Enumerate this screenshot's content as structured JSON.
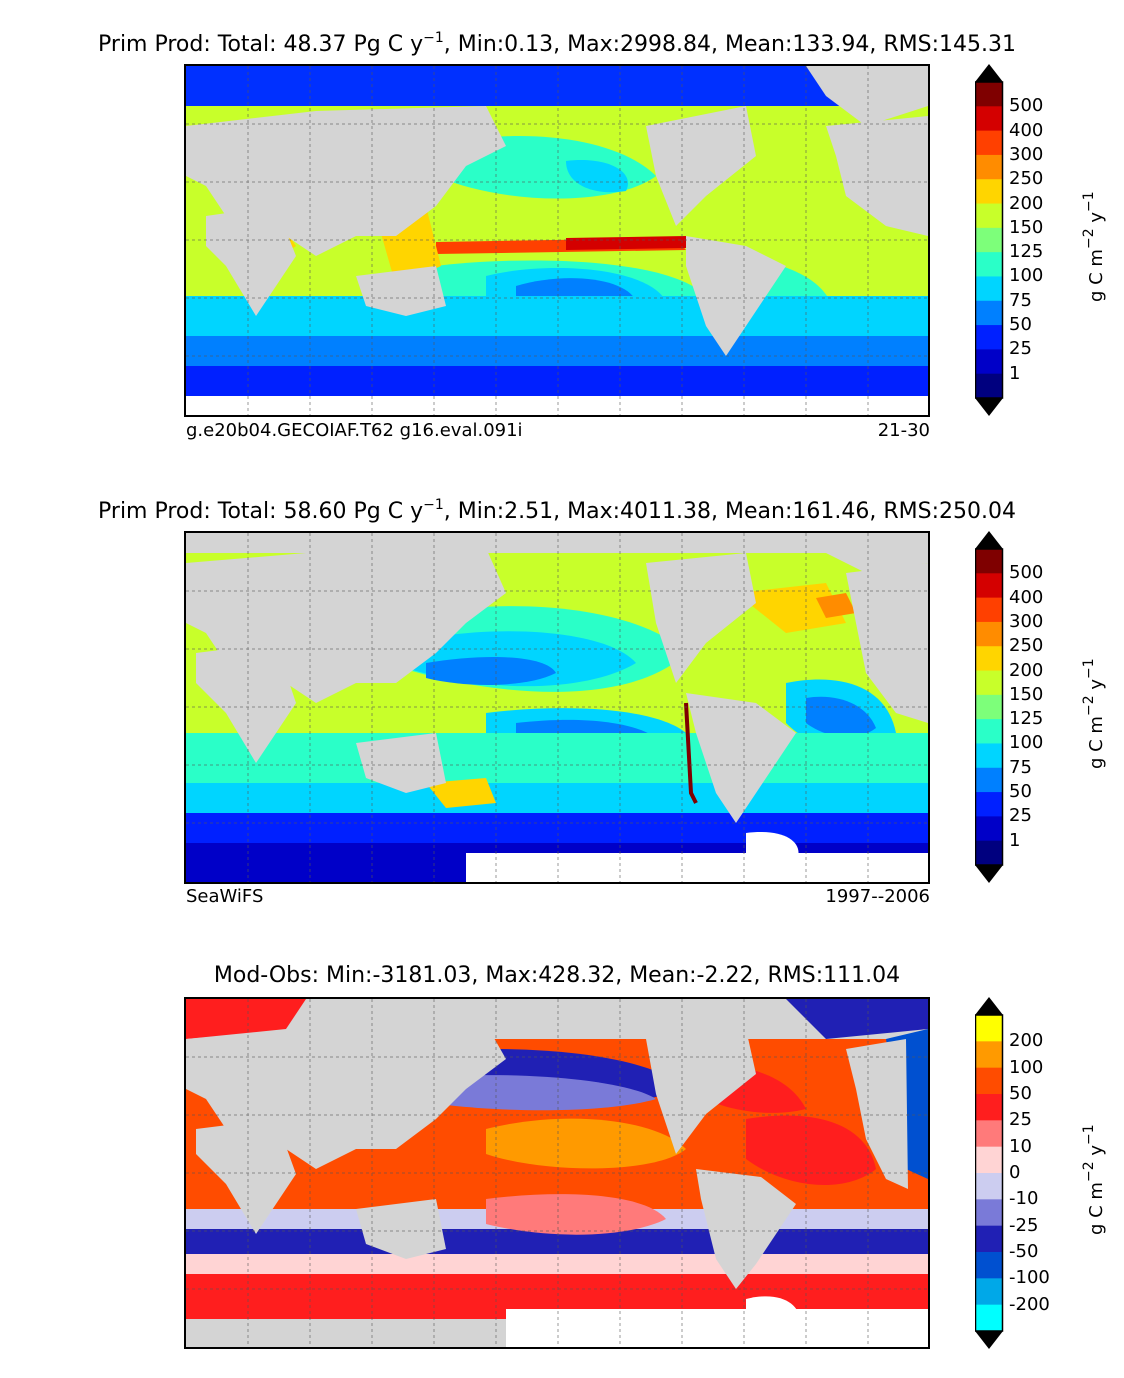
{
  "chart_data": [
    {
      "type": "heatmap",
      "title_prefix": "Prim Prod: Total: 48.37 Pg C y",
      "title_sup": "−1",
      "title_suffix": ", Min:0.13, Max:2998.84, Mean:133.94, RMS:145.31",
      "left_label": "g.e20b04.GECOIAF.T62 g16.eval.091i",
      "right_label": "21-30",
      "colorbar": {
        "ticks": [
          "500",
          "400",
          "300",
          "250",
          "200",
          "150",
          "125",
          "100",
          "75",
          "50",
          "25",
          "1"
        ],
        "unit": "g C m−2 y−1",
        "colors": [
          "#7f0000",
          "#d40000",
          "#ff4000",
          "#ff8c00",
          "#ffd500",
          "#c8ff2a",
          "#7dff7a",
          "#2affc8",
          "#00d5ff",
          "#0080ff",
          "#0020ff",
          "#0000c8",
          "#00007f"
        ]
      }
    },
    {
      "type": "heatmap",
      "title_prefix": "Prim Prod: Total: 58.60 Pg C y",
      "title_sup": "−1",
      "title_suffix": ", Min:2.51, Max:4011.38, Mean:161.46, RMS:250.04",
      "left_label": "SeaWiFS",
      "right_label": "1997--2006",
      "colorbar": {
        "ticks": [
          "500",
          "400",
          "300",
          "250",
          "200",
          "150",
          "125",
          "100",
          "75",
          "50",
          "25",
          "1"
        ],
        "unit": "g C m−2 y−1",
        "colors": [
          "#7f0000",
          "#d40000",
          "#ff4000",
          "#ff8c00",
          "#ffd500",
          "#c8ff2a",
          "#7dff7a",
          "#2affc8",
          "#00d5ff",
          "#0080ff",
          "#0020ff",
          "#0000c8",
          "#00007f"
        ]
      }
    },
    {
      "type": "heatmap",
      "title_prefix": "Mod-Obs: Min:-3181.03, Max:428.32, Mean:-2.22, RMS:111.04",
      "title_sup": "",
      "title_suffix": "",
      "left_label": "",
      "right_label": "",
      "colorbar": {
        "ticks": [
          "200",
          "100",
          "50",
          "25",
          "10",
          "0",
          "-10",
          "-25",
          "-50",
          "-100",
          "-200"
        ],
        "unit": "g C m−2 y−1",
        "colors": [
          "#ffff00",
          "#ff9a00",
          "#ff4c00",
          "#ff1e1e",
          "#ff7a7a",
          "#ffd4d4",
          "#cccdf0",
          "#7a7ad8",
          "#2020b4",
          "#0050d0",
          "#00a8e8",
          "#00ffff"
        ]
      }
    }
  ]
}
